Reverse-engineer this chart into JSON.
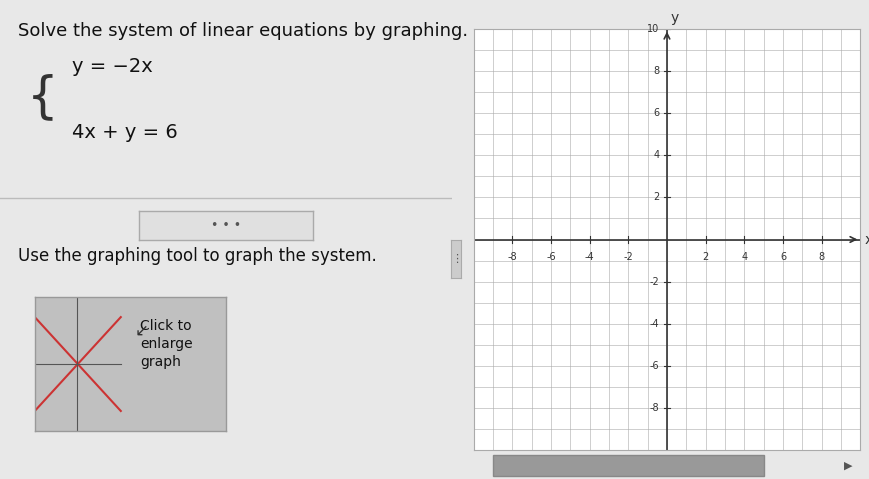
{
  "title_text": "Solve the system of linear equations by graphing.",
  "eq1": "y = −2x",
  "eq2": "4x + y = 6",
  "use_text": "Use the graphing tool to graph the system.",
  "click_text": "Click to\nenlarge\ngraph",
  "bg_color": "#e8e8e8",
  "panel_left_color": "#d8d8d8",
  "panel_right_color": "#f0f0f0",
  "graph_bg": "#ffffff",
  "grid_color": "#aaaaaa",
  "axis_color": "#333333",
  "tick_label_color": "#333333",
  "xlim": [
    -10,
    10
  ],
  "ylim": [
    -10,
    10
  ],
  "xticks": [
    -8,
    -6,
    -4,
    -2,
    2,
    4,
    6,
    8
  ],
  "yticks": [
    -8,
    -6,
    -4,
    -2,
    2,
    4,
    6,
    8,
    10
  ],
  "title_fontsize": 13,
  "eq_fontsize": 14,
  "use_fontsize": 12,
  "click_fontsize": 12
}
